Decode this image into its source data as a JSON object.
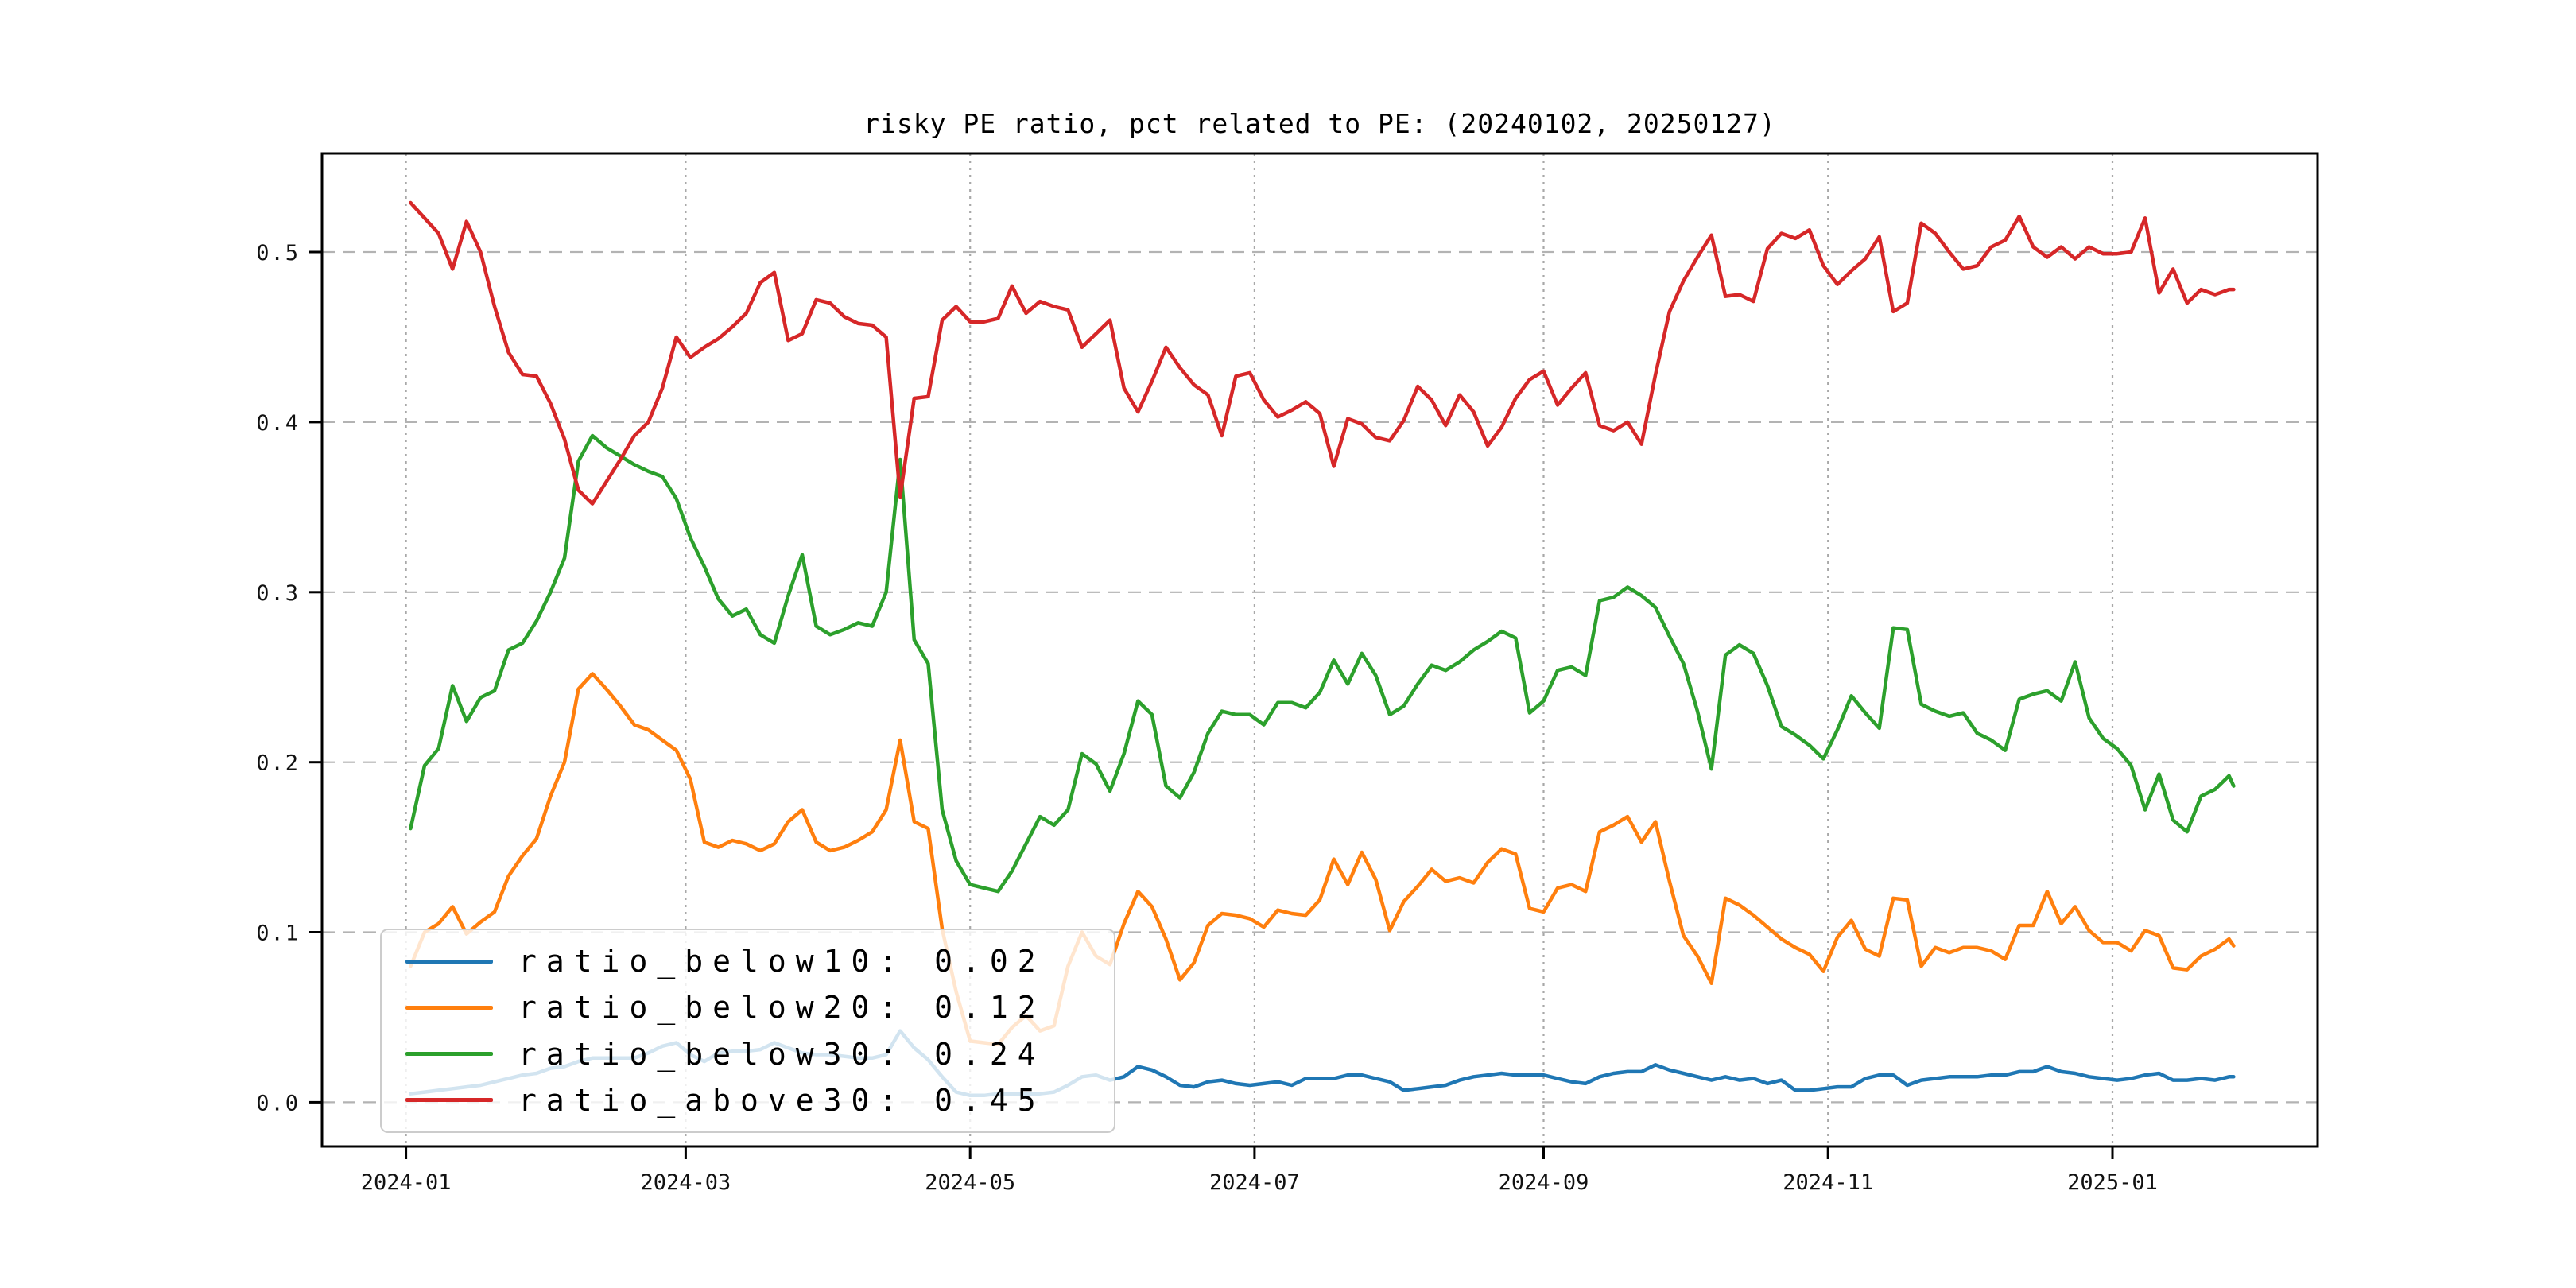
{
  "figure": {
    "background": "#ffffff",
    "plot_background": "#ffffff",
    "axes_color": "#000000",
    "h_grid_color": "#b3b3b3",
    "v_grid_color": "#a8a8a8"
  },
  "chart_data": {
    "type": "line",
    "title": "risky PE ratio, pct related to PE: (20240102, 20250127)",
    "xlabel": "",
    "ylabel": "",
    "grid": true,
    "legend_position": "lower left",
    "ylim": [
      -0.026,
      0.558
    ],
    "xlim": [
      "2023-12-14",
      "2025-02-14"
    ],
    "y_ticks": [
      0.0,
      0.1,
      0.2,
      0.3,
      0.4,
      0.5
    ],
    "y_tick_labels": [
      "0.0",
      "0.1",
      "0.2",
      "0.3",
      "0.4",
      "0.5"
    ],
    "x_ticks": [
      "2024-01",
      "2024-03",
      "2024-05",
      "2024-07",
      "2024-09",
      "2024-11",
      "2025-01"
    ],
    "x": [
      "2024-01-02",
      "2024-01-05",
      "2024-01-08",
      "2024-01-11",
      "2024-01-14",
      "2024-01-17",
      "2024-01-20",
      "2024-01-23",
      "2024-01-26",
      "2024-01-29",
      "2024-02-01",
      "2024-02-04",
      "2024-02-07",
      "2024-02-10",
      "2024-02-13",
      "2024-02-16",
      "2024-02-19",
      "2024-02-22",
      "2024-02-25",
      "2024-02-28",
      "2024-03-02",
      "2024-03-05",
      "2024-03-08",
      "2024-03-11",
      "2024-03-14",
      "2024-03-17",
      "2024-03-20",
      "2024-03-23",
      "2024-03-26",
      "2024-03-29",
      "2024-04-01",
      "2024-04-04",
      "2024-04-07",
      "2024-04-10",
      "2024-04-13",
      "2024-04-16",
      "2024-04-19",
      "2024-04-22",
      "2024-04-25",
      "2024-04-28",
      "2024-05-01",
      "2024-05-04",
      "2024-05-07",
      "2024-05-10",
      "2024-05-13",
      "2024-05-16",
      "2024-05-19",
      "2024-05-22",
      "2024-05-25",
      "2024-05-28",
      "2024-05-31",
      "2024-06-03",
      "2024-06-06",
      "2024-06-09",
      "2024-06-12",
      "2024-06-15",
      "2024-06-18",
      "2024-06-21",
      "2024-06-24",
      "2024-06-27",
      "2024-06-30",
      "2024-07-03",
      "2024-07-06",
      "2024-07-09",
      "2024-07-12",
      "2024-07-15",
      "2024-07-18",
      "2024-07-21",
      "2024-07-24",
      "2024-07-27",
      "2024-07-30",
      "2024-08-02",
      "2024-08-05",
      "2024-08-08",
      "2024-08-11",
      "2024-08-14",
      "2024-08-17",
      "2024-08-20",
      "2024-08-23",
      "2024-08-26",
      "2024-08-29",
      "2024-09-01",
      "2024-09-04",
      "2024-09-07",
      "2024-09-10",
      "2024-09-13",
      "2024-09-16",
      "2024-09-19",
      "2024-09-22",
      "2024-09-25",
      "2024-09-28",
      "2024-10-01",
      "2024-10-04",
      "2024-10-07",
      "2024-10-10",
      "2024-10-13",
      "2024-10-16",
      "2024-10-19",
      "2024-10-22",
      "2024-10-25",
      "2024-10-28",
      "2024-10-31",
      "2024-11-03",
      "2024-11-06",
      "2024-11-09",
      "2024-11-12",
      "2024-11-15",
      "2024-11-18",
      "2024-11-21",
      "2024-11-24",
      "2024-11-27",
      "2024-11-30",
      "2024-12-03",
      "2024-12-06",
      "2024-12-09",
      "2024-12-12",
      "2024-12-15",
      "2024-12-18",
      "2024-12-21",
      "2024-12-24",
      "2024-12-27",
      "2024-12-30",
      "2025-01-02",
      "2025-01-05",
      "2025-01-08",
      "2025-01-11",
      "2025-01-14",
      "2025-01-17",
      "2025-01-20",
      "2025-01-23",
      "2025-01-26",
      "2025-01-27"
    ],
    "series": [
      {
        "name": "ratio_below10",
        "legend_label": "ratio_below10: 0.02",
        "color": "#1f77b4",
        "values": [
          0.005,
          0.006,
          0.007,
          0.008,
          0.009,
          0.01,
          0.012,
          0.014,
          0.016,
          0.017,
          0.02,
          0.021,
          0.024,
          0.026,
          0.026,
          0.026,
          0.026,
          0.029,
          0.033,
          0.035,
          0.028,
          0.024,
          0.029,
          0.03,
          0.03,
          0.031,
          0.035,
          0.032,
          0.029,
          0.028,
          0.028,
          0.027,
          0.026,
          0.026,
          0.028,
          0.042,
          0.032,
          0.025,
          0.015,
          0.006,
          0.004,
          0.004,
          0.005,
          0.005,
          0.005,
          0.005,
          0.006,
          0.01,
          0.015,
          0.016,
          0.013,
          0.015,
          0.021,
          0.019,
          0.015,
          0.01,
          0.009,
          0.012,
          0.013,
          0.011,
          0.01,
          0.011,
          0.012,
          0.01,
          0.014,
          0.014,
          0.014,
          0.016,
          0.016,
          0.014,
          0.012,
          0.007,
          0.008,
          0.009,
          0.01,
          0.013,
          0.015,
          0.016,
          0.017,
          0.016,
          0.016,
          0.016,
          0.014,
          0.012,
          0.011,
          0.015,
          0.017,
          0.018,
          0.018,
          0.022,
          0.019,
          0.017,
          0.015,
          0.013,
          0.015,
          0.013,
          0.014,
          0.011,
          0.013,
          0.007,
          0.007,
          0.008,
          0.009,
          0.009,
          0.014,
          0.016,
          0.016,
          0.01,
          0.013,
          0.014,
          0.015,
          0.015,
          0.015,
          0.016,
          0.016,
          0.018,
          0.018,
          0.021,
          0.018,
          0.017,
          0.015,
          0.014,
          0.013,
          0.014,
          0.016,
          0.017,
          0.013,
          0.013,
          0.014,
          0.013,
          0.015,
          0.015
        ]
      },
      {
        "name": "ratio_below20",
        "legend_label": "ratio_below20: 0.12",
        "color": "#ff7f0e",
        "values": [
          0.08,
          0.1,
          0.105,
          0.115,
          0.099,
          0.106,
          0.112,
          0.133,
          0.145,
          0.155,
          0.18,
          0.2,
          0.243,
          0.252,
          0.243,
          0.233,
          0.222,
          0.219,
          0.213,
          0.207,
          0.19,
          0.153,
          0.15,
          0.154,
          0.152,
          0.148,
          0.152,
          0.165,
          0.172,
          0.153,
          0.148,
          0.15,
          0.154,
          0.159,
          0.172,
          0.213,
          0.165,
          0.161,
          0.102,
          0.065,
          0.036,
          0.035,
          0.034,
          0.044,
          0.051,
          0.042,
          0.045,
          0.08,
          0.1,
          0.086,
          0.081,
          0.105,
          0.124,
          0.115,
          0.096,
          0.072,
          0.082,
          0.104,
          0.111,
          0.11,
          0.108,
          0.103,
          0.113,
          0.111,
          0.11,
          0.119,
          0.143,
          0.128,
          0.147,
          0.131,
          0.101,
          0.118,
          0.127,
          0.137,
          0.13,
          0.132,
          0.129,
          0.141,
          0.149,
          0.146,
          0.114,
          0.112,
          0.126,
          0.128,
          0.124,
          0.159,
          0.163,
          0.168,
          0.153,
          0.165,
          0.13,
          0.098,
          0.086,
          0.07,
          0.12,
          0.116,
          0.11,
          0.103,
          0.096,
          0.091,
          0.087,
          0.077,
          0.097,
          0.107,
          0.09,
          0.086,
          0.12,
          0.119,
          0.08,
          0.091,
          0.088,
          0.091,
          0.091,
          0.089,
          0.084,
          0.104,
          0.104,
          0.124,
          0.105,
          0.115,
          0.101,
          0.094,
          0.094,
          0.089,
          0.101,
          0.098,
          0.079,
          0.078,
          0.086,
          0.09,
          0.096,
          0.092
        ]
      },
      {
        "name": "ratio_below30",
        "legend_label": "ratio_below30: 0.24",
        "color": "#2ca02c",
        "values": [
          0.161,
          0.198,
          0.208,
          0.245,
          0.224,
          0.238,
          0.242,
          0.266,
          0.27,
          0.283,
          0.3,
          0.32,
          0.377,
          0.392,
          0.385,
          0.38,
          0.375,
          0.371,
          0.368,
          0.355,
          0.332,
          0.315,
          0.296,
          0.286,
          0.29,
          0.275,
          0.27,
          0.298,
          0.322,
          0.28,
          0.275,
          0.278,
          0.282,
          0.28,
          0.3,
          0.378,
          0.272,
          0.258,
          0.172,
          0.142,
          0.128,
          0.126,
          0.124,
          0.136,
          0.152,
          0.168,
          0.163,
          0.172,
          0.205,
          0.199,
          0.183,
          0.205,
          0.236,
          0.228,
          0.186,
          0.179,
          0.194,
          0.217,
          0.23,
          0.228,
          0.228,
          0.222,
          0.235,
          0.235,
          0.232,
          0.241,
          0.26,
          0.246,
          0.264,
          0.251,
          0.228,
          0.233,
          0.246,
          0.257,
          0.254,
          0.259,
          0.266,
          0.271,
          0.277,
          0.273,
          0.229,
          0.236,
          0.254,
          0.256,
          0.251,
          0.295,
          0.297,
          0.303,
          0.298,
          0.291,
          0.274,
          0.258,
          0.23,
          0.196,
          0.263,
          0.269,
          0.264,
          0.245,
          0.221,
          0.216,
          0.21,
          0.202,
          0.219,
          0.239,
          0.229,
          0.22,
          0.279,
          0.278,
          0.234,
          0.23,
          0.227,
          0.229,
          0.217,
          0.213,
          0.207,
          0.237,
          0.24,
          0.242,
          0.236,
          0.259,
          0.226,
          0.214,
          0.208,
          0.198,
          0.172,
          0.193,
          0.166,
          0.159,
          0.18,
          0.184,
          0.192,
          0.186
        ]
      },
      {
        "name": "ratio_above30",
        "legend_label": "ratio_above30: 0.45",
        "color": "#d62728",
        "values": [
          0.529,
          0.52,
          0.511,
          0.49,
          0.518,
          0.5,
          0.468,
          0.441,
          0.428,
          0.427,
          0.411,
          0.39,
          0.36,
          0.352,
          0.365,
          0.378,
          0.392,
          0.4,
          0.42,
          0.45,
          0.438,
          0.444,
          0.449,
          0.456,
          0.464,
          0.482,
          0.488,
          0.448,
          0.452,
          0.472,
          0.47,
          0.462,
          0.458,
          0.457,
          0.45,
          0.356,
          0.414,
          0.415,
          0.46,
          0.468,
          0.459,
          0.459,
          0.461,
          0.48,
          0.464,
          0.471,
          0.468,
          0.466,
          0.444,
          0.452,
          0.46,
          0.42,
          0.406,
          0.424,
          0.444,
          0.432,
          0.422,
          0.416,
          0.392,
          0.427,
          0.429,
          0.413,
          0.403,
          0.407,
          0.412,
          0.405,
          0.374,
          0.402,
          0.399,
          0.391,
          0.389,
          0.401,
          0.421,
          0.413,
          0.398,
          0.416,
          0.406,
          0.386,
          0.397,
          0.414,
          0.425,
          0.43,
          0.41,
          0.42,
          0.429,
          0.398,
          0.395,
          0.4,
          0.387,
          0.428,
          0.465,
          0.483,
          0.497,
          0.51,
          0.474,
          0.475,
          0.471,
          0.502,
          0.511,
          0.508,
          0.513,
          0.492,
          0.481,
          0.489,
          0.496,
          0.509,
          0.465,
          0.47,
          0.517,
          0.511,
          0.5,
          0.49,
          0.492,
          0.503,
          0.507,
          0.521,
          0.503,
          0.497,
          0.503,
          0.496,
          0.503,
          0.499,
          0.499,
          0.5,
          0.52,
          0.476,
          0.49,
          0.47,
          0.478,
          0.475,
          0.478,
          0.478
        ]
      }
    ]
  }
}
